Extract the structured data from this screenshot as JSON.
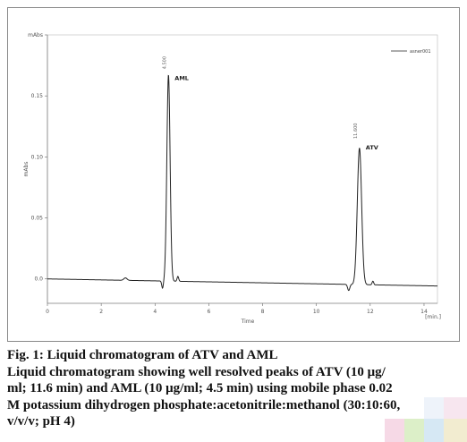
{
  "caption": {
    "title": "Fig. 1: Liquid chromatogram of ATV and AML",
    "lines": [
      "Liquid chromatogram showing well resolved peaks of ATV (10 μg/",
      "ml; 11.6 min) and AML (10 μg/ml; 4.5 min) using mobile phase 0.02",
      "M potassium dihydrogen phosphate:acetonitrile:methanol (30:10:60,",
      "v/v/v; pH 4)"
    ]
  },
  "chart_data": {
    "type": "line",
    "title": "",
    "xlabel": "Time",
    "ylabel": "mAbs",
    "x_unit_label": "[min.]",
    "legend": [
      "asner001"
    ],
    "legend_position": "top-right",
    "xlim": [
      0,
      14.5
    ],
    "ylim": [
      -0.02,
      0.2
    ],
    "x_ticks": [
      0,
      2,
      4,
      6,
      8,
      10,
      12,
      14
    ],
    "x_tick_labels": [
      "0",
      "2",
      "4",
      "6",
      "8",
      "10",
      "12",
      "14"
    ],
    "y_ticks": [
      0.0,
      0.05,
      0.1,
      0.15,
      0.2
    ],
    "y_tick_labels": [
      "0.0",
      "0.05",
      "0.10",
      "0.15",
      "mAbs"
    ],
    "grid": false,
    "baseline": 0.0,
    "peaks": [
      {
        "label": "AML",
        "retention_time_label": "4.500",
        "x": 4.5,
        "height": 0.169,
        "width": 0.06
      },
      {
        "label": "ATV",
        "retention_time_label": "11.600",
        "x": 11.6,
        "height": 0.112,
        "width": 0.08
      }
    ],
    "series": [
      {
        "name": "asner001",
        "color": "#222222"
      }
    ]
  }
}
